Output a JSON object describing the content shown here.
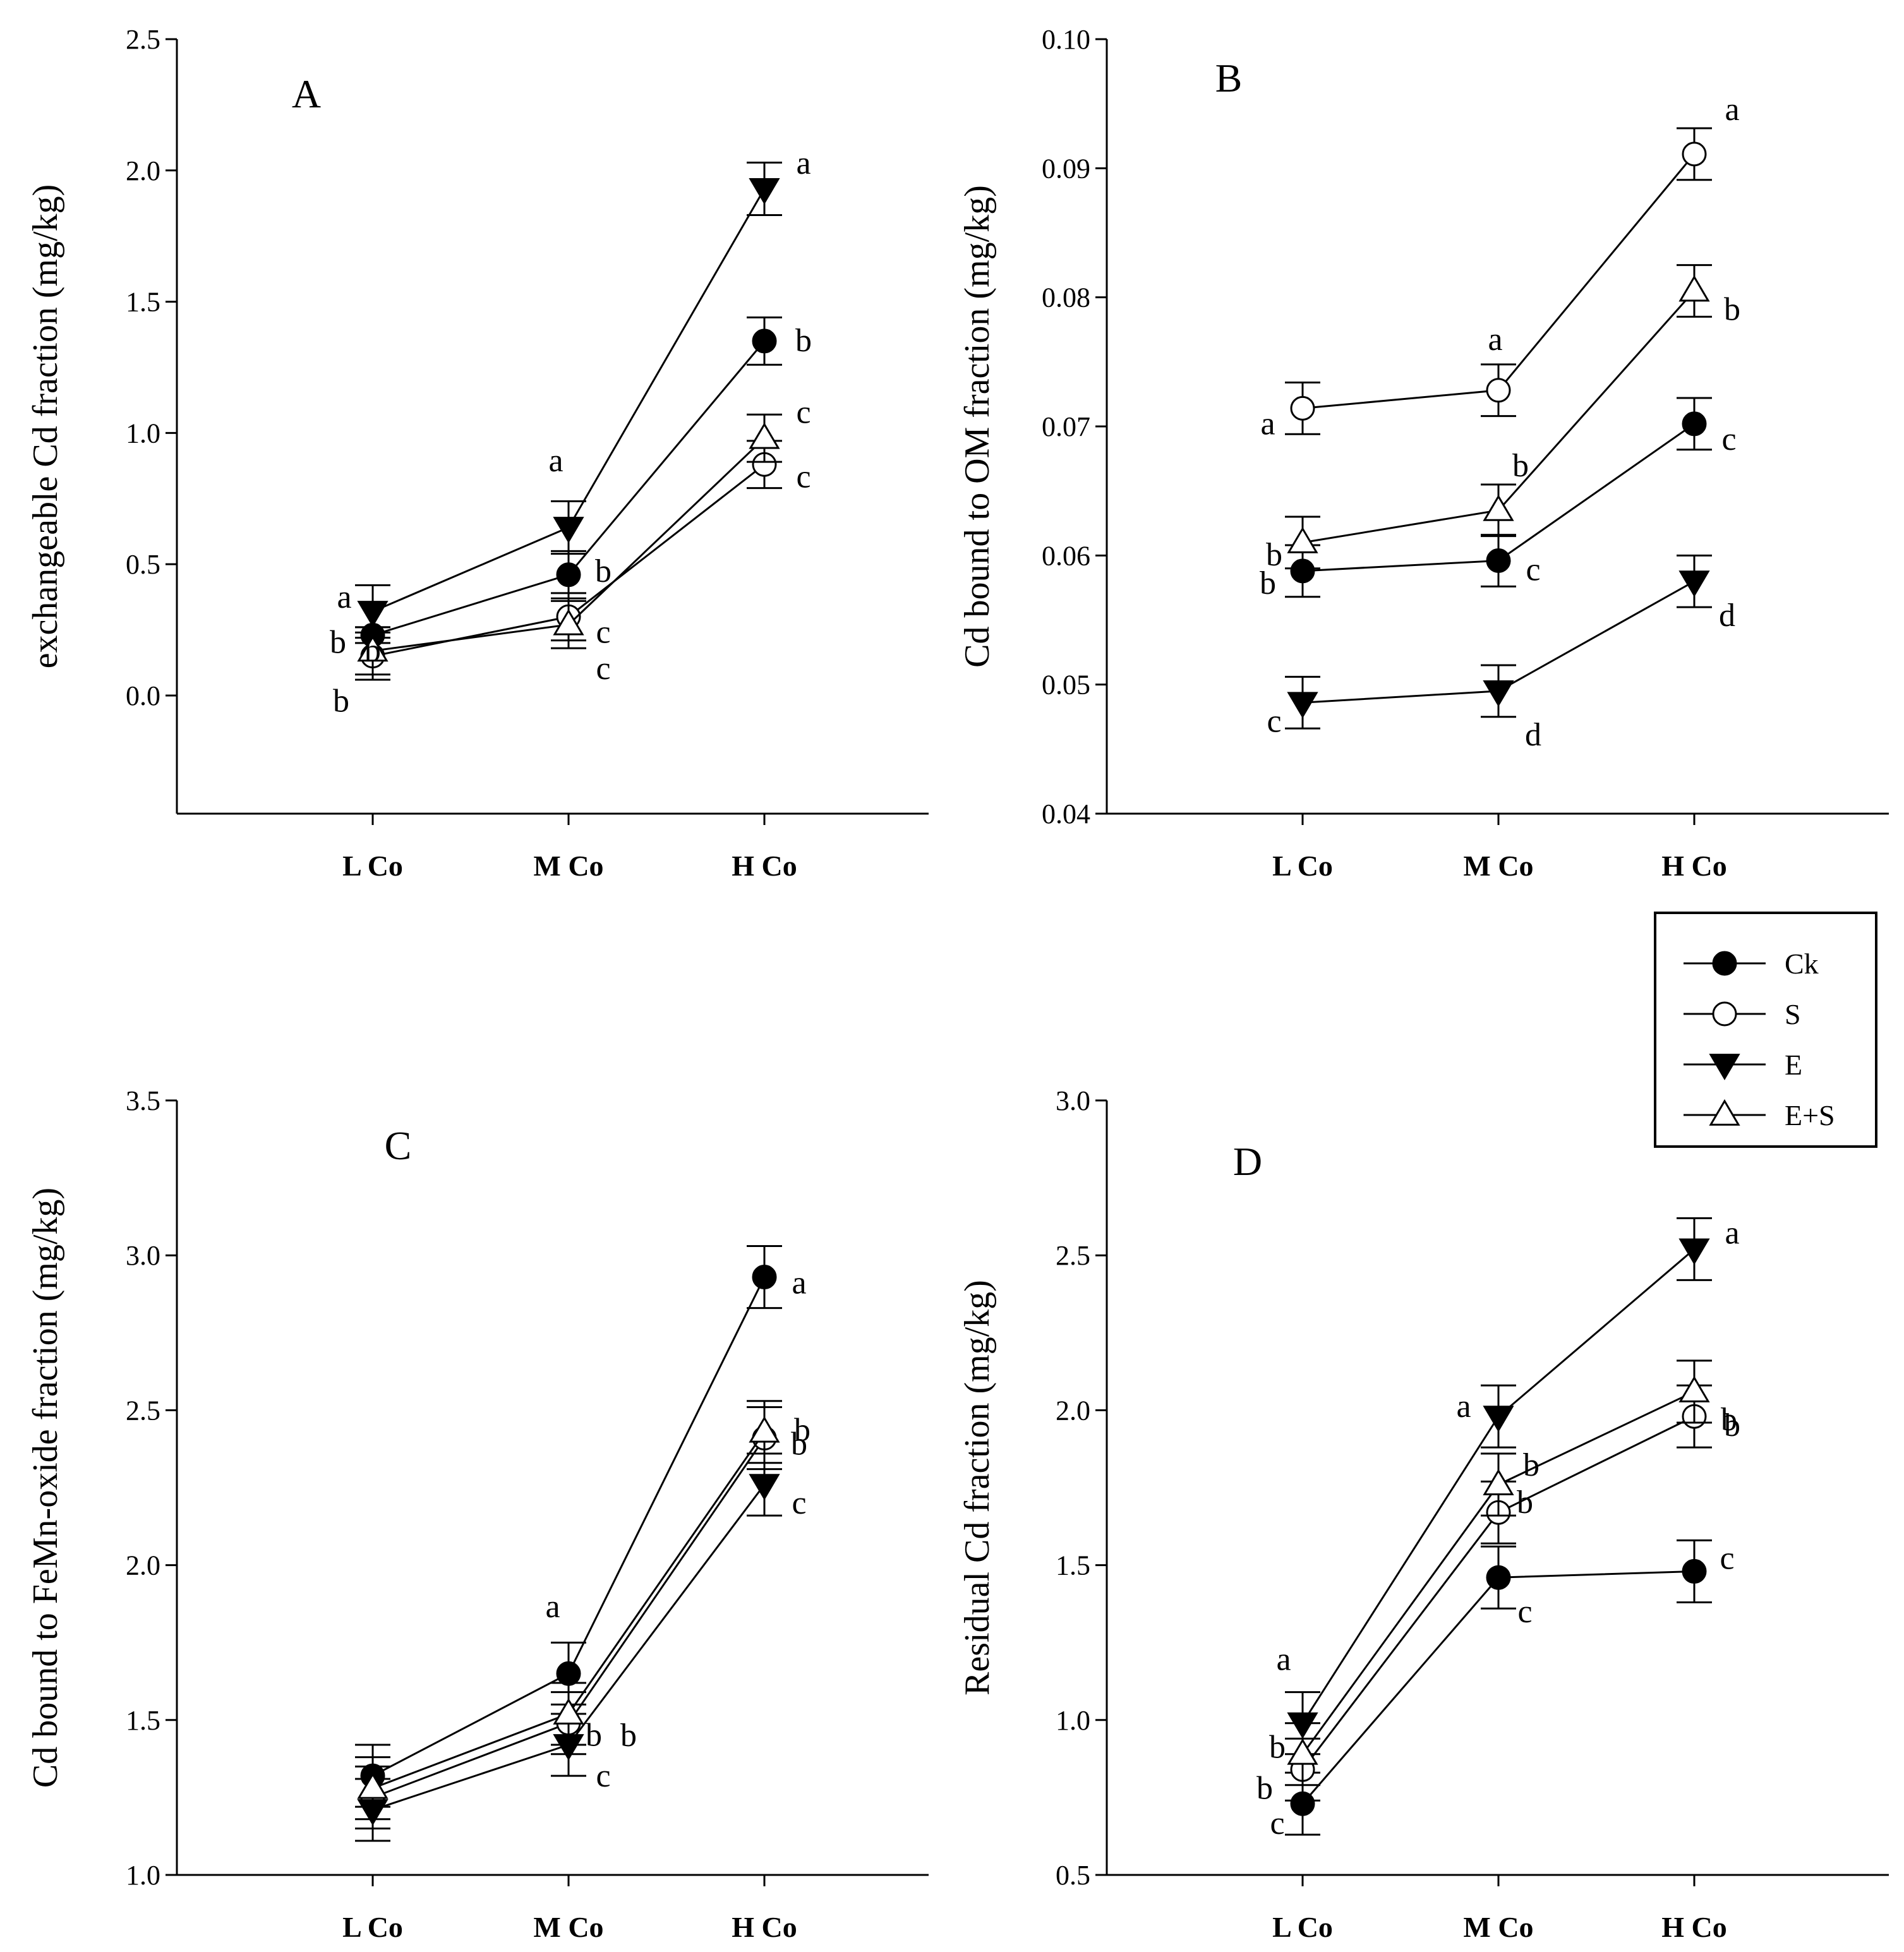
{
  "figure": {
    "legend": [
      {
        "name": "Ck",
        "marker": "filled-circle"
      },
      {
        "name": "S",
        "marker": "open-circle"
      },
      {
        "name": "E",
        "marker": "filled-triangle-down"
      },
      {
        "name": "E+S",
        "marker": "open-triangle-up"
      }
    ]
  },
  "chart_data": [
    {
      "type": "line",
      "panel": "A",
      "ylabel": "exchangeable Cd fraction (mg/kg)",
      "xlabel": "",
      "categories": [
        "L Co",
        "M Co",
        "H Co"
      ],
      "ylim": [
        -0.45,
        2.5
      ],
      "yticks": [
        0.0,
        0.5,
        1.0,
        1.5,
        2.0,
        2.5
      ],
      "ytick_labels": [
        "0.0",
        "0.5",
        "1.0",
        "1.5",
        "2.0",
        "2.5"
      ],
      "series": [
        {
          "name": "Ck",
          "marker": "filled-circle",
          "values": [
            0.23,
            0.46,
            1.35
          ],
          "errors": [
            0.03,
            0.09,
            0.09
          ],
          "letters": [
            "b",
            "b",
            "b"
          ]
        },
        {
          "name": "S",
          "marker": "open-circle",
          "values": [
            0.15,
            0.3,
            0.88
          ],
          "errors": [
            0.09,
            0.09,
            0.09
          ],
          "letters": [
            "b",
            "c",
            "c"
          ]
        },
        {
          "name": "E",
          "marker": "filled-triangle-down",
          "values": [
            0.32,
            0.64,
            1.93
          ],
          "errors": [
            0.1,
            0.1,
            0.1
          ],
          "letters": [
            "a",
            "a",
            "a"
          ]
        },
        {
          "name": "E+S",
          "marker": "open-triangle-up",
          "values": [
            0.17,
            0.27,
            0.98
          ],
          "errors": [
            0.09,
            0.09,
            0.09
          ],
          "letters": [
            "b",
            "c",
            "c"
          ]
        }
      ]
    },
    {
      "type": "line",
      "panel": "B",
      "ylabel": "Cd bound to OM fraction (mg/kg)",
      "xlabel": "",
      "categories": [
        "L Co",
        "M Co",
        "H Co"
      ],
      "ylim": [
        0.04,
        0.1
      ],
      "yticks": [
        0.04,
        0.05,
        0.06,
        0.07,
        0.08,
        0.09,
        0.1
      ],
      "ytick_labels": [
        "0.04",
        "0.05",
        "0.06",
        "0.07",
        "0.08",
        "0.09",
        "0.10"
      ],
      "series": [
        {
          "name": "Ck",
          "marker": "filled-circle",
          "values": [
            0.0588,
            0.0596,
            0.0702
          ],
          "errors": [
            0.002,
            0.002,
            0.002
          ],
          "letters": [
            "b",
            "c",
            "c"
          ]
        },
        {
          "name": "S",
          "marker": "open-circle",
          "values": [
            0.0714,
            0.0728,
            0.0911
          ],
          "errors": [
            0.002,
            0.002,
            0.002
          ],
          "letters": [
            "a",
            "a",
            "a"
          ]
        },
        {
          "name": "E",
          "marker": "filled-triangle-down",
          "values": [
            0.0486,
            0.0495,
            0.058
          ],
          "errors": [
            0.002,
            0.002,
            0.002
          ],
          "letters": [
            "c",
            "d",
            "d"
          ]
        },
        {
          "name": "E+S",
          "marker": "open-triangle-up",
          "values": [
            0.061,
            0.0635,
            0.0805
          ],
          "errors": [
            0.002,
            0.002,
            0.002
          ],
          "letters": [
            "b",
            "b",
            "b"
          ]
        }
      ]
    },
    {
      "type": "line",
      "panel": "C",
      "ylabel": "Cd bound to FeMn-oxide fraction (mg/kg)",
      "xlabel": "",
      "categories": [
        "L Co",
        "M Co",
        "H Co"
      ],
      "ylim": [
        1.0,
        3.5
      ],
      "yticks": [
        1.0,
        1.5,
        2.0,
        2.5,
        3.0,
        3.5
      ],
      "ytick_labels": [
        "1.0",
        "1.5",
        "2.0",
        "2.5",
        "3.0",
        "3.5"
      ],
      "series": [
        {
          "name": "Ck",
          "marker": "filled-circle",
          "values": [
            1.32,
            1.65,
            2.93
          ],
          "errors": [
            0.1,
            0.1,
            0.1
          ],
          "letters": [
            "",
            "a",
            "a"
          ]
        },
        {
          "name": "S",
          "marker": "open-circle",
          "values": [
            1.25,
            1.49,
            2.41
          ],
          "errors": [
            0.1,
            0.1,
            0.1
          ],
          "letters": [
            "",
            "b",
            "b"
          ]
        },
        {
          "name": "E",
          "marker": "filled-triangle-down",
          "values": [
            1.21,
            1.42,
            2.26
          ],
          "errors": [
            0.1,
            0.1,
            0.1
          ],
          "letters": [
            "",
            "c",
            "c"
          ]
        },
        {
          "name": "E+S",
          "marker": "open-triangle-up",
          "values": [
            1.28,
            1.52,
            2.43
          ],
          "errors": [
            0.1,
            0.1,
            0.1
          ],
          "letters": [
            "",
            "b",
            "b"
          ]
        }
      ]
    },
    {
      "type": "line",
      "panel": "D",
      "ylabel": "Residual Cd fraction (mg/kg)",
      "xlabel": "",
      "categories": [
        "L Co",
        "M Co",
        "H Co"
      ],
      "ylim": [
        0.5,
        3.0
      ],
      "yticks": [
        0.5,
        1.0,
        1.5,
        2.0,
        2.5,
        3.0
      ],
      "ytick_labels": [
        "0.5",
        "1.0",
        "1.5",
        "2.0",
        "2.5",
        "3.0"
      ],
      "series": [
        {
          "name": "Ck",
          "marker": "filled-circle",
          "values": [
            0.73,
            1.46,
            1.48
          ],
          "errors": [
            0.1,
            0.1,
            0.1
          ],
          "letters": [
            "c",
            "c",
            "c"
          ]
        },
        {
          "name": "S",
          "marker": "open-circle",
          "values": [
            0.84,
            1.67,
            1.98
          ],
          "errors": [
            0.1,
            0.1,
            0.1
          ],
          "letters": [
            "b",
            "b",
            "b"
          ]
        },
        {
          "name": "E",
          "marker": "filled-triangle-down",
          "values": [
            0.99,
            1.98,
            2.52
          ],
          "errors": [
            0.1,
            0.1,
            0.1
          ],
          "letters": [
            "a",
            "a",
            "a"
          ]
        },
        {
          "name": "E+S",
          "marker": "open-triangle-up",
          "values": [
            0.89,
            1.76,
            2.06
          ],
          "errors": [
            0.1,
            0.1,
            0.1
          ],
          "letters": [
            "b",
            "b",
            "b"
          ]
        }
      ]
    }
  ]
}
